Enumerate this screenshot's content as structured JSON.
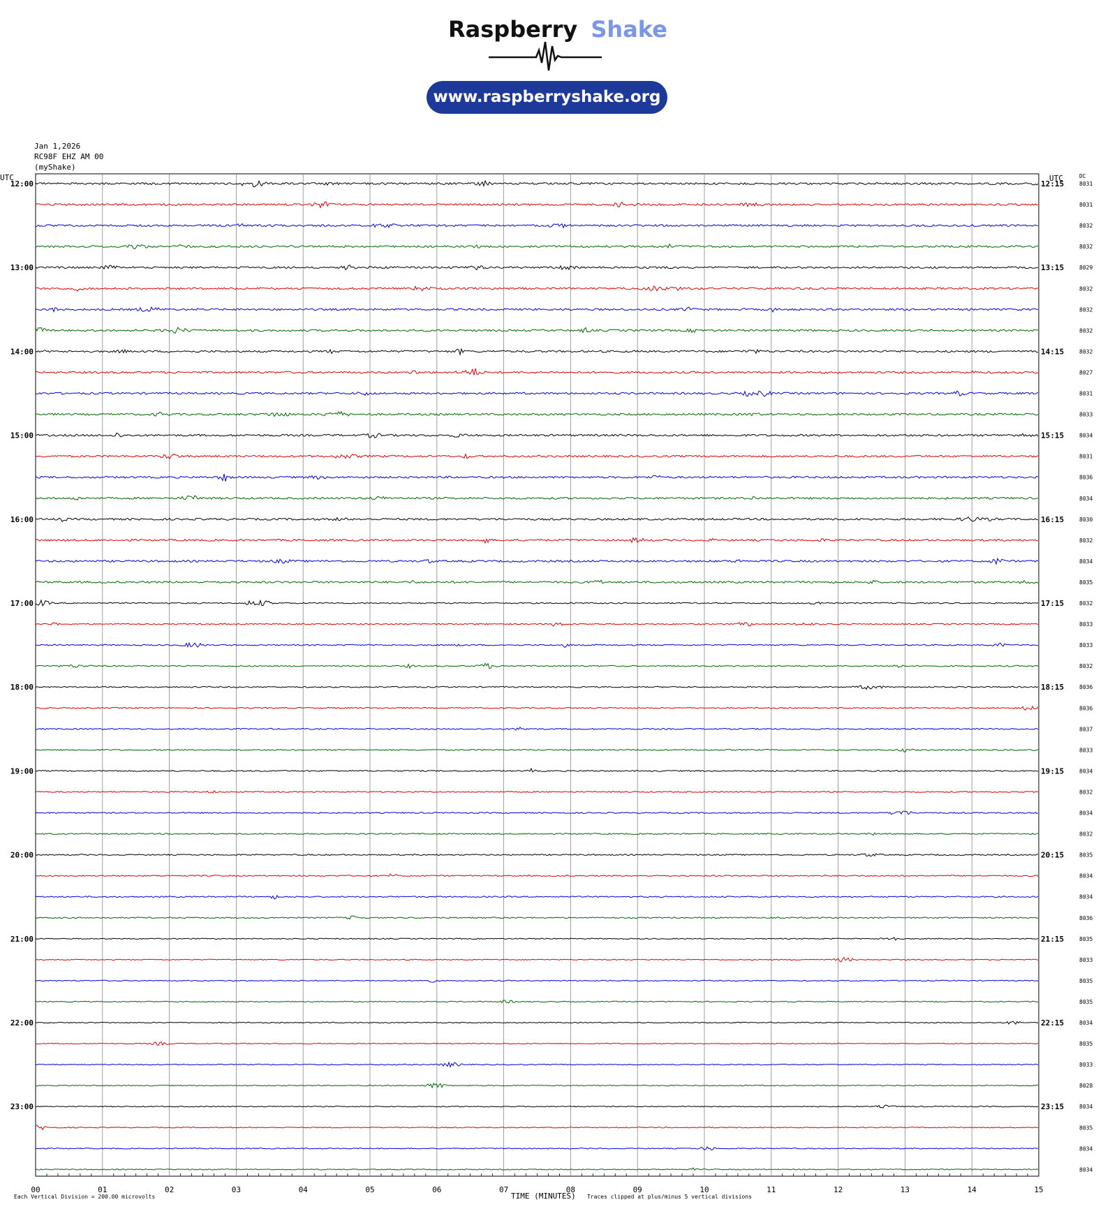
{
  "header": {
    "brand_word1": "Raspberry",
    "brand_word2": "Shake",
    "url": "www.raspberryshake.org",
    "brand_color_1": "#111111",
    "brand_color_2": "#7b96e6",
    "url_bg": "#1d3a9a"
  },
  "meta": {
    "date": "Jan 1,2026",
    "station": "RC98F EHZ AM 00",
    "owner": "(myShake)"
  },
  "chart_data": {
    "type": "line",
    "subtype": "helicorder",
    "left_axis_title": "UTC",
    "right_axis_title": "UTC",
    "dc_title": "DC",
    "xlabel": "TIME (MINUTES)",
    "x_ticks": [
      "00",
      "01",
      "02",
      "03",
      "04",
      "05",
      "06",
      "07",
      "08",
      "09",
      "10",
      "11",
      "12",
      "13",
      "14",
      "15"
    ],
    "xlim": [
      0,
      15
    ],
    "rows_per_hour": 4,
    "trace_colors": [
      "#000000",
      "#dd0000",
      "#0000dd",
      "#006600"
    ],
    "left_hour_labels": [
      "12:00",
      "13:00",
      "14:00",
      "15:00",
      "16:00",
      "17:00",
      "18:00",
      "19:00",
      "20:00",
      "21:00",
      "22:00",
      "23:00"
    ],
    "right_hour_labels": [
      "12:15",
      "13:15",
      "14:15",
      "15:15",
      "16:15",
      "17:15",
      "18:15",
      "19:15",
      "20:15",
      "21:15",
      "22:15",
      "23:15"
    ],
    "dc_values": [
      "8031",
      "8031",
      "8032",
      "8032",
      "8029",
      "8032",
      "8032",
      "8032",
      "8032",
      "8027",
      "8031",
      "8033",
      "8034",
      "8031",
      "8036",
      "8034",
      "8030",
      "8032",
      "8034",
      "8035",
      "8032",
      "8033",
      "8033",
      "8032",
      "8036",
      "8036",
      "8037",
      "8033",
      "8034",
      "8032",
      "8034",
      "8032",
      "8035",
      "8034",
      "8034",
      "8036",
      "8035",
      "8033",
      "8035",
      "8035",
      "8034",
      "8035",
      "8033",
      "8028",
      "8034",
      "8035",
      "8034",
      "8034"
    ],
    "footer_left": "Each Vertical Division =  200.00 microvolts",
    "footer_right": "Traces clipped at plus/minus 5 vertical divisions"
  }
}
